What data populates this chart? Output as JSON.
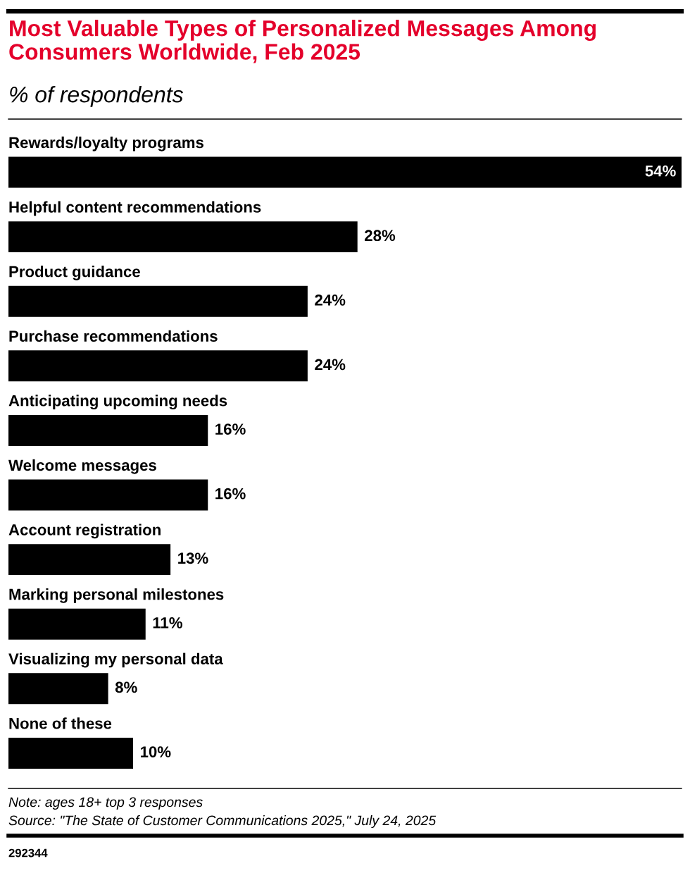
{
  "chart_data": {
    "type": "bar",
    "orientation": "horizontal",
    "title": "Most Valuable Types of Personalized Messages Among Consumers Worldwide, Feb 2025",
    "subtitle": "% of respondents",
    "categories": [
      "Rewards/loyalty programs",
      "Helpful content recommendations",
      "Product guidance",
      "Purchase recommendations",
      "Anticipating upcoming needs",
      "Welcome messages",
      "Account registration",
      "Marking personal milestones",
      "Visualizing my personal data",
      "None of these"
    ],
    "values": [
      54,
      28,
      24,
      24,
      16,
      16,
      13,
      11,
      8,
      10
    ],
    "value_labels": [
      "54%",
      "28%",
      "24%",
      "24%",
      "16%",
      "16%",
      "13%",
      "11%",
      "8%",
      "10%"
    ],
    "color": "#000000",
    "xlim": [
      0,
      54
    ],
    "annotations": [
      "Note: ages 18+ top 3 responses",
      "Source: \"The State of Customer Communications 2025,\" July 24, 2025",
      "292344"
    ]
  }
}
